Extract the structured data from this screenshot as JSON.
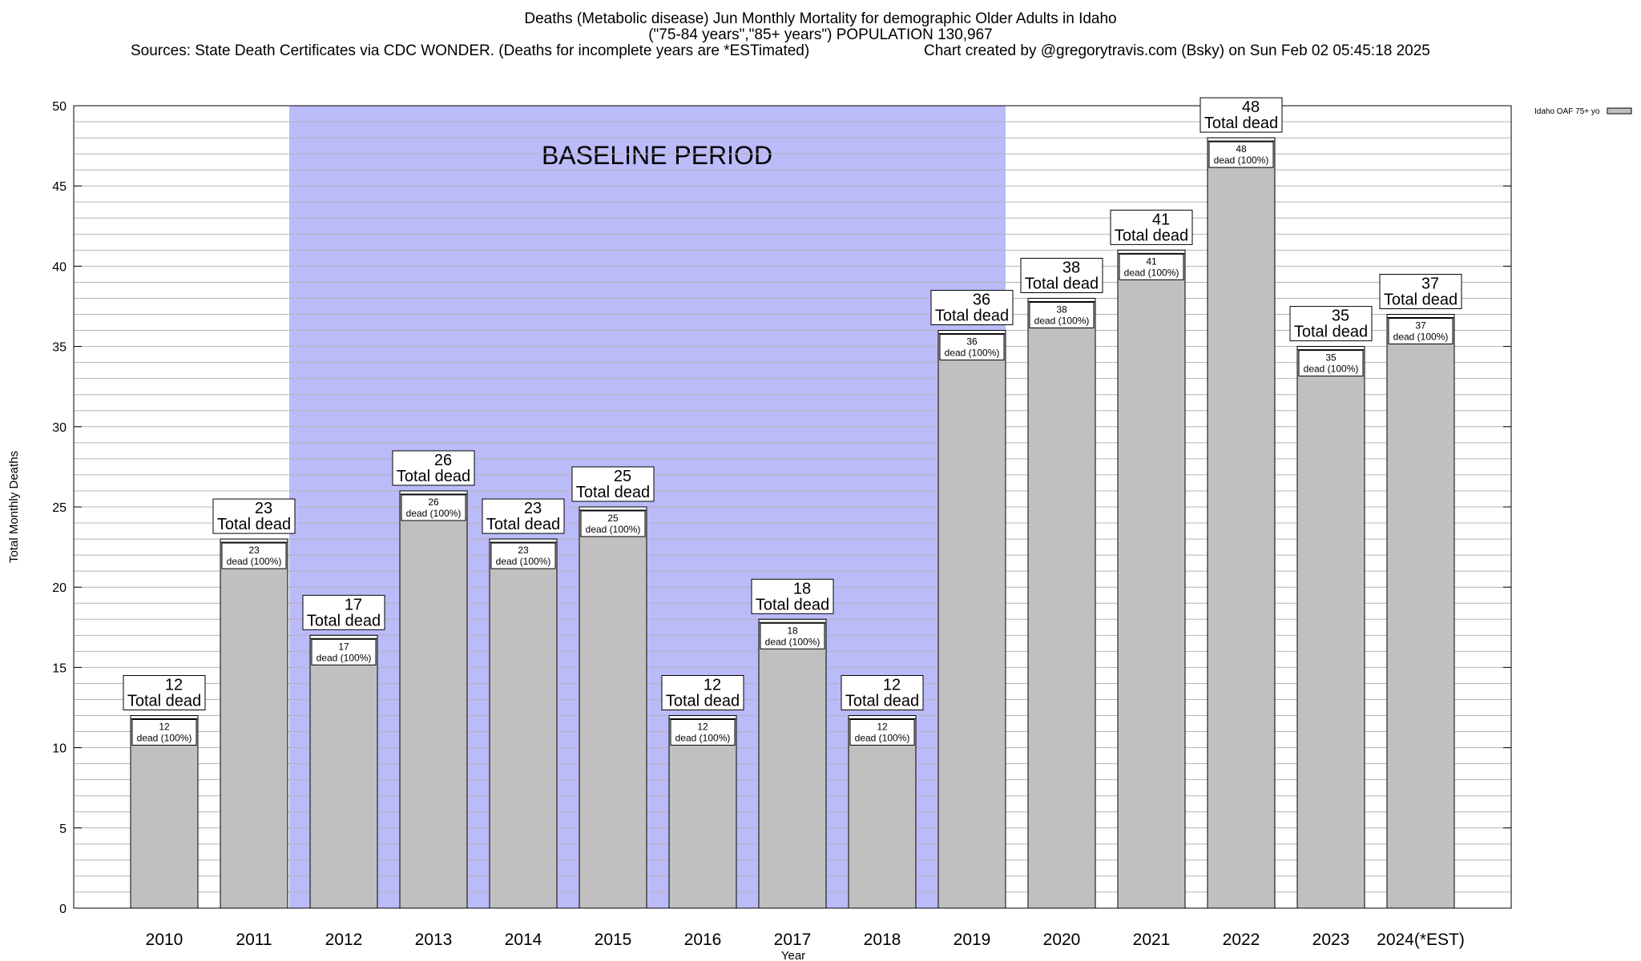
{
  "header": {
    "title_line1": "Deaths (Metabolic disease) Jun Monthly Mortality for demographic Older Adults in Idaho",
    "title_line2": "(\"75-84 years\",\"85+ years\") POPULATION 130,967",
    "sources": "Sources: State Death Certificates via CDC WONDER. (Deaths for incomplete years are *ESTimated)",
    "credit": "Chart created by @gregorytravis.com (Bsky) on Sun Feb 02 05:45:18 2025"
  },
  "chart_data": {
    "type": "bar",
    "xlabel": "Year",
    "ylabel": "Total Monthly Deaths",
    "ylim": [
      0,
      50
    ],
    "yticks": [
      0,
      5,
      10,
      15,
      20,
      25,
      30,
      35,
      40,
      45,
      50
    ],
    "grid": true,
    "legend": {
      "label": "Idaho OAF 75+ yo",
      "placement": "top-right outside"
    },
    "baseline": {
      "label": "BASELINE PERIOD",
      "from": "2012",
      "to": "2019"
    },
    "categories": [
      "2010",
      "2011",
      "2012",
      "2013",
      "2014",
      "2015",
      "2016",
      "2017",
      "2018",
      "2019",
      "2020",
      "2021",
      "2022",
      "2023",
      "2024(*EST)"
    ],
    "series": [
      {
        "name": "Idaho OAF 75+ yo",
        "values": [
          12,
          23,
          17,
          26,
          23,
          25,
          12,
          18,
          12,
          36,
          38,
          41,
          48,
          35,
          37
        ]
      }
    ],
    "top_label_text": "Total dead",
    "inner_label_text": "dead (100%)",
    "colors": {
      "bar": "#c0c0c0",
      "baseline": "#bbbbfa",
      "grid": "#b4b4b4"
    }
  }
}
